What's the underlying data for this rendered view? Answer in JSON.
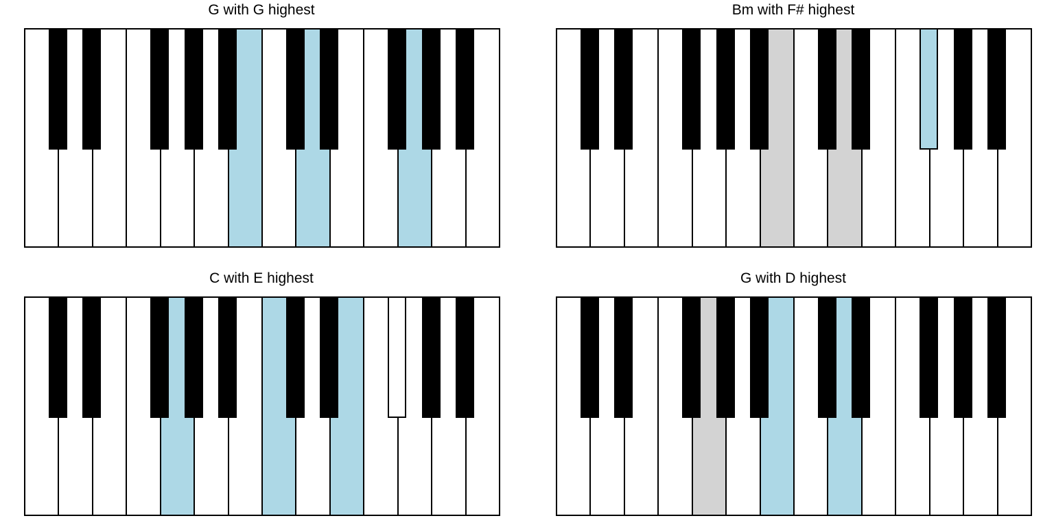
{
  "colors": {
    "highlight": "#add8e6",
    "secondary": "#d3d3d3",
    "white_key": "#ffffff",
    "black_key": "#000000",
    "outline": "#000000"
  },
  "white_key_count": 14,
  "black_key_slots": [
    0,
    1,
    3,
    4,
    5,
    7,
    8,
    10,
    11,
    12
  ],
  "panels": [
    {
      "title": "G with G highest",
      "white_keys": {
        "6": "highlight",
        "8": "highlight",
        "11": "highlight"
      },
      "black_keys": {}
    },
    {
      "title": "Bm with F# highest",
      "white_keys": {
        "6": "secondary",
        "8": "secondary"
      },
      "black_keys": {
        "10": "highlight"
      }
    },
    {
      "title": "C with E highest",
      "white_keys": {
        "4": "highlight",
        "7": "highlight",
        "9": "highlight"
      },
      "black_keys": {
        "10": "white_key"
      }
    },
    {
      "title": "G with D highest",
      "white_keys": {
        "4": "secondary",
        "6": "highlight",
        "8": "highlight"
      },
      "black_keys": {}
    }
  ]
}
